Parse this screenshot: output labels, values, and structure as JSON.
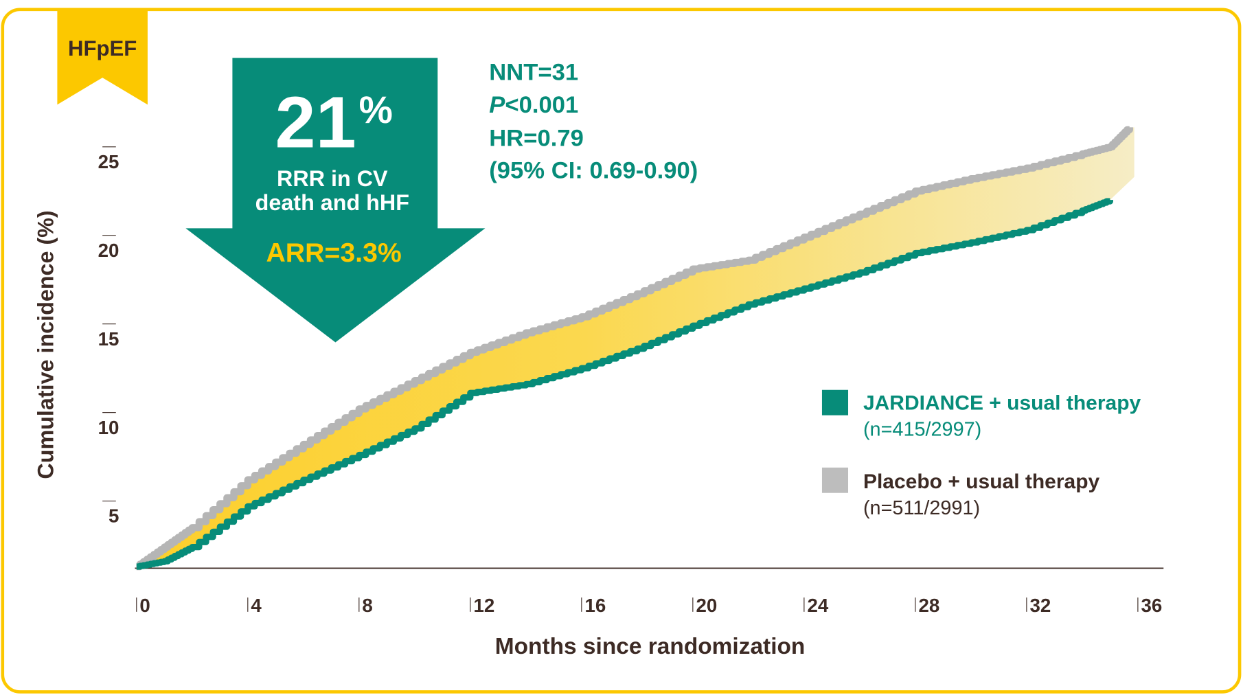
{
  "badge": "HFpEF",
  "callout": {
    "rrr_value": "21",
    "rrr_unit": "%",
    "rrr_line1": "RRR in CV",
    "rrr_line2": "death and hHF",
    "arr": "ARR=3.3%"
  },
  "stats": {
    "nnt": "NNT=31",
    "p_symbol": "P",
    "p_value": "<0.001",
    "hr": "HR=0.79",
    "ci": "(95% CI: 0.69-0.90)"
  },
  "colors": {
    "jardiance": "#078c79",
    "placebo": "#b5b5b5",
    "fill_start": "#fccf2b",
    "fill_end": "#f6edc6",
    "border": "#fcc800"
  },
  "chart_data": {
    "type": "line",
    "xlabel": "Months since randomization",
    "ylabel": "Cumulative incidence (%)",
    "xlim": [
      0,
      36
    ],
    "ylim": [
      0,
      27
    ],
    "xticks": [
      0,
      4,
      8,
      12,
      16,
      20,
      24,
      28,
      32,
      36
    ],
    "yticks": [
      5,
      10,
      15,
      20,
      25
    ],
    "legend_position": "right",
    "grid": false,
    "series": [
      {
        "name": "JARDIANCE + usual therapy",
        "sub": "(n=415/2997)",
        "x": [
          0,
          1,
          2,
          4,
          6,
          8,
          10,
          12,
          14,
          16,
          18,
          20,
          22,
          24,
          26,
          28,
          30,
          32,
          34,
          35
        ],
        "y": [
          1.3,
          1.6,
          2.4,
          4.7,
          6.2,
          7.6,
          9.1,
          11.1,
          11.6,
          12.5,
          13.6,
          14.9,
          16.1,
          17.0,
          17.9,
          19.0,
          19.6,
          20.3,
          21.4,
          22.0
        ]
      },
      {
        "name": "Placebo + usual therapy",
        "sub": "(n=511/2991)",
        "x": [
          0,
          1,
          2,
          4,
          6,
          8,
          10,
          12,
          14,
          16,
          18,
          20,
          22,
          24,
          26,
          28,
          30,
          32,
          34,
          35,
          35.7
        ],
        "y": [
          1.3,
          2.4,
          3.5,
          6.2,
          8.2,
          10.2,
          11.8,
          13.4,
          14.5,
          15.4,
          16.7,
          18.1,
          18.6,
          19.9,
          21.2,
          22.5,
          23.2,
          23.8,
          24.6,
          25.0,
          26.1
        ]
      }
    ]
  }
}
